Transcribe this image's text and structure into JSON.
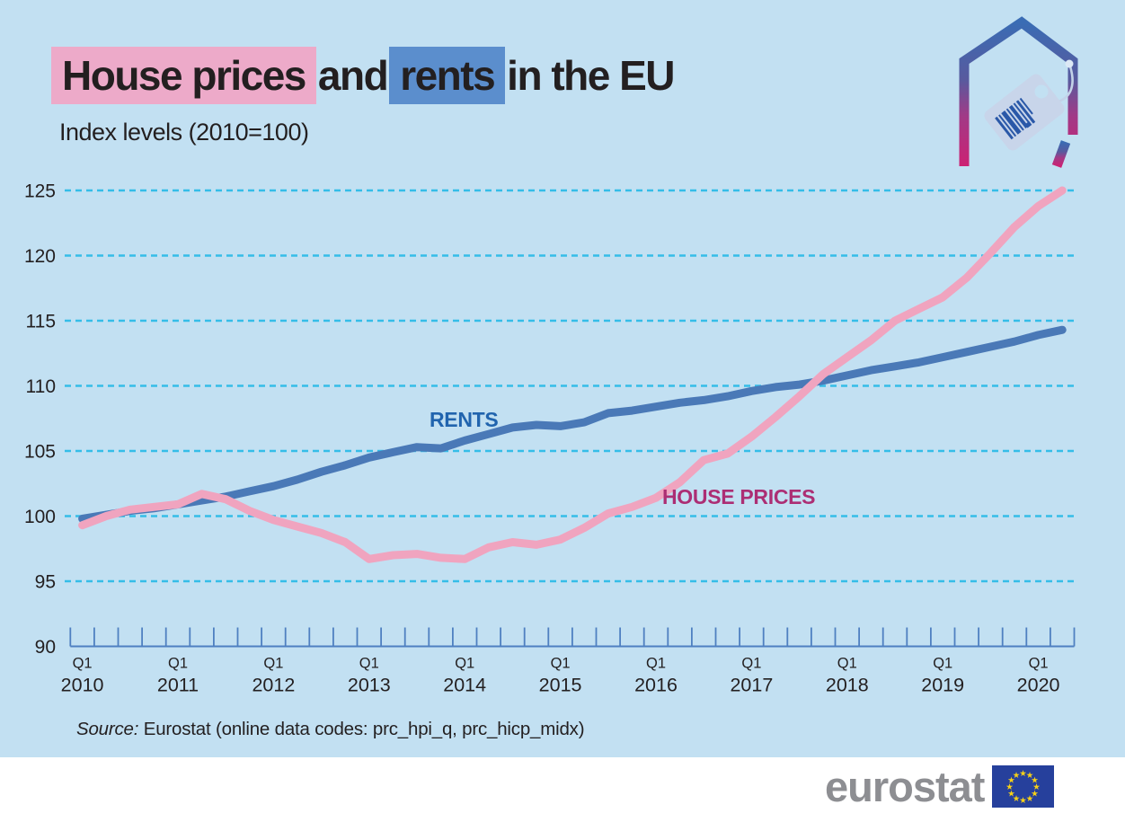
{
  "title": {
    "highlight_pink": "House prices",
    "connector": " and ",
    "highlight_blue": "rents",
    "suffix": " in the EU"
  },
  "subtitle": "Index levels (2010=100)",
  "source": {
    "label": "Source:",
    "text": " Eurostat (online data codes: prc_hpi_q, prc_hicp_midx)"
  },
  "footer": {
    "brand": "eurostat"
  },
  "icons": {
    "house_tag": "house-with-price-tag",
    "eu_flag_stars": 12
  },
  "colors": {
    "background": "#c2e0f2",
    "gridline": "#35bde8",
    "axis": "#4f80c1",
    "text": "#231f20",
    "title_highlight_pink": "#edaac9",
    "title_highlight_blue": "#5b8ecd",
    "logo_gray": "#8d8e92",
    "flag_blue": "#26409c",
    "flag_star": "#f7d117"
  },
  "chart_data": {
    "type": "line",
    "title": "House prices and rents in the EU",
    "subtitle": "Index levels (2010=100)",
    "ylim": [
      90,
      125
    ],
    "y_ticks": [
      125,
      120,
      115,
      110,
      105,
      100,
      95,
      90
    ],
    "grid": "horizontal-dashed",
    "frequency": "quarterly",
    "x_start": "2010-Q1",
    "x_end": "2020-Q2",
    "x_quarter_label": "Q1",
    "x_year_labels": [
      "2010",
      "2011",
      "2012",
      "2013",
      "2014",
      "2015",
      "2016",
      "2017",
      "2018",
      "2019",
      "2020"
    ],
    "series": [
      {
        "name": "RENTS",
        "color": "#4a79b7",
        "label_color": "#2164ae",
        "values": [
          99.8,
          100.1,
          100.4,
          100.6,
          100.9,
          101.2,
          101.5,
          101.9,
          102.3,
          102.8,
          103.4,
          103.9,
          104.5,
          104.9,
          105.3,
          105.2,
          105.8,
          106.3,
          106.8,
          107.0,
          106.9,
          107.2,
          107.9,
          108.1,
          108.4,
          108.7,
          108.9,
          109.2,
          109.6,
          109.9,
          110.1,
          110.4,
          110.8,
          111.2,
          111.5,
          111.8,
          112.2,
          112.6,
          113.0,
          113.4,
          113.9,
          114.3
        ]
      },
      {
        "name": "HOUSE PRICES",
        "color": "#f0a4bf",
        "label_color": "#ac2e74",
        "values": [
          99.3,
          100.0,
          100.5,
          100.7,
          100.9,
          101.7,
          101.3,
          100.4,
          99.7,
          99.2,
          98.7,
          98.0,
          96.7,
          97.0,
          97.1,
          96.8,
          96.7,
          97.6,
          98.0,
          97.8,
          98.2,
          99.1,
          100.2,
          100.7,
          101.4,
          102.6,
          104.3,
          104.8,
          106.1,
          107.6,
          109.2,
          110.9,
          112.2,
          113.5,
          115.0,
          115.9,
          116.8,
          118.3,
          120.2,
          122.2,
          123.8,
          125.0
        ]
      }
    ]
  }
}
